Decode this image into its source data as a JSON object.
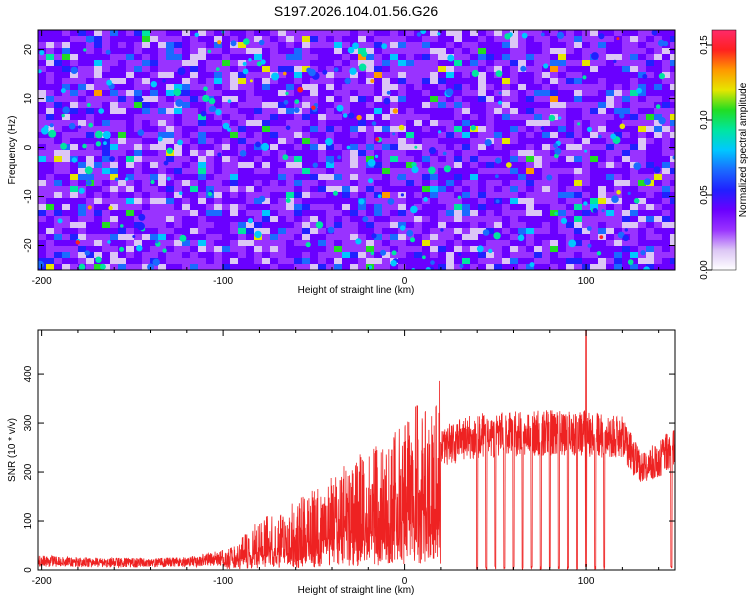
{
  "figure_title": "S197.2026.104.01.56.G26",
  "chart_data": [
    {
      "type": "heatmap",
      "title": "S197.2026.104.01.56.G26",
      "xlabel": "Height of straight line (km)",
      "ylabel": "Frequency (Hz)",
      "xlim": [
        -202,
        149
      ],
      "ylim": [
        -25,
        24
      ],
      "xticks": [
        -200,
        -100,
        0,
        100
      ],
      "yticks": [
        -20,
        -10,
        0,
        10,
        20
      ],
      "colorbar": {
        "label": "Normalized spectral amplitude",
        "range": [
          0.0,
          0.16
        ],
        "ticks": [
          "0.00",
          "0.05",
          "0.10",
          "0.15"
        ],
        "tick_values": [
          0.0,
          0.05,
          0.1,
          0.15
        ],
        "colormap": [
          "#ffffff",
          "#dcc6f5",
          "#9933ff",
          "#6a00ff",
          "#2020ff",
          "#1a6bff",
          "#00c8ff",
          "#00e6a0",
          "#22dd22",
          "#e6e600",
          "#ff9900",
          "#ff2020",
          "#ff2a6a"
        ]
      },
      "description_values": {
        "background_amplitude": 0.03,
        "peak_amplitude": 0.15
      }
    },
    {
      "type": "line",
      "title": "",
      "xlabel": "Height of straight line (km)",
      "ylabel": "SNR (10 * v/v)",
      "xlim": [
        -202,
        149
      ],
      "ylim": [
        0,
        490
      ],
      "xticks": [
        -200,
        -100,
        0,
        100
      ],
      "yticks": [
        0,
        100,
        200,
        300,
        400
      ],
      "color": "#ee2222",
      "series": [
        {
          "name": "SNR",
          "envelope_x": [
            -202,
            -180,
            -160,
            -140,
            -120,
            -100,
            -90,
            -80,
            -70,
            -60,
            -50,
            -40,
            -30,
            -20,
            -10,
            0,
            10,
            20,
            30,
            40,
            60,
            80,
            100,
            120,
            130,
            140,
            149
          ],
          "envelope_y": [
            18,
            16,
            15,
            15,
            16,
            25,
            45,
            70,
            80,
            95,
            110,
            130,
            150,
            165,
            180,
            205,
            235,
            260,
            275,
            285,
            290,
            292,
            290,
            280,
            215,
            235,
            265
          ],
          "dropout_x": [
            40,
            45,
            50,
            55,
            60,
            65,
            70,
            75,
            80,
            85,
            90,
            95,
            100,
            105,
            110,
            147
          ],
          "spike_x": [
            -7,
            7,
            100
          ],
          "spike_y": [
            245,
            335,
            490
          ]
        }
      ]
    }
  ]
}
